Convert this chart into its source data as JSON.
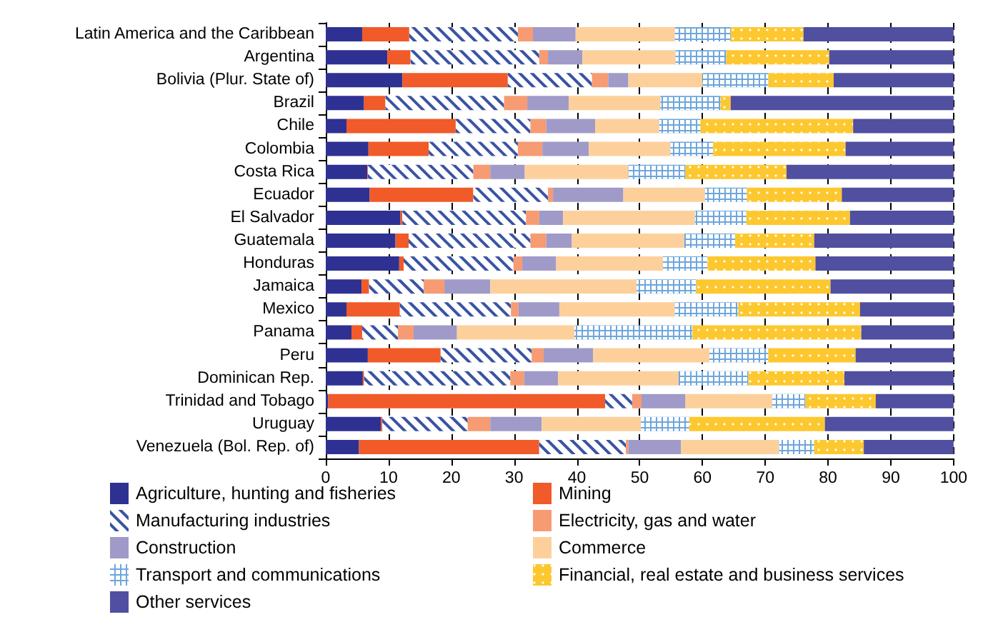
{
  "chart_data": {
    "type": "bar",
    "orientation": "horizontal",
    "stacked": true,
    "categories": [
      "Latin America and the Caribbean",
      "Argentina",
      "Bolivia (Plur. State of)",
      "Brazil",
      "Chile",
      "Colombia",
      "Costa Rica",
      "Ecuador",
      "El Salvador",
      "Guatemala",
      "Honduras",
      "Jamaica",
      "Mexico",
      "Panama",
      "Peru",
      "Dominican Rep.",
      "Trinidad and Tobago",
      "Uruguay",
      "Venezuela (Bol. Rep. of)"
    ],
    "series": [
      {
        "name": "Agriculture, hunting and fisheries",
        "color": "#2e3192",
        "values": [
          5.8,
          9.8,
          12.2,
          6.1,
          3.3,
          6.8,
          6.6,
          7.0,
          11.9,
          11.1,
          11.7,
          5.7,
          3.3,
          4.1,
          6.7,
          5.9,
          0.4,
          8.8,
          5.3
        ]
      },
      {
        "name": "Mining",
        "color": "#f15a29",
        "values": [
          7.5,
          3.7,
          16.8,
          3.4,
          17.4,
          9.6,
          0.1,
          16.5,
          0.3,
          2.1,
          0.7,
          1.2,
          8.5,
          1.7,
          11.6,
          0.2,
          44.1,
          0.2,
          28.7
        ]
      },
      {
        "name": "Manufacturing industries",
        "color": "#3953a4",
        "values": [
          17.3,
          20.5,
          13.4,
          18.9,
          11.9,
          14.2,
          16.8,
          11.9,
          19.7,
          19.4,
          17.5,
          8.7,
          17.7,
          5.7,
          14.5,
          23.3,
          4.3,
          13.6,
          13.8
        ]
      },
      {
        "name": "Electricity, gas and water",
        "color": "#f79b72",
        "values": [
          2.4,
          1.4,
          2.6,
          3.7,
          2.5,
          3.9,
          2.7,
          0.8,
          2.1,
          2.5,
          1.4,
          3.3,
          1.2,
          2.5,
          1.9,
          2.2,
          1.5,
          3.6,
          0.4
        ]
      },
      {
        "name": "Construction",
        "color": "#a09ac9",
        "values": [
          6.8,
          5.5,
          3.2,
          6.6,
          7.8,
          7.4,
          5.5,
          11.2,
          3.8,
          4.1,
          5.4,
          7.3,
          6.5,
          6.9,
          7.9,
          5.4,
          7.0,
          8.2,
          8.4
        ]
      },
      {
        "name": "Commerce",
        "color": "#fdd09b",
        "values": [
          15.8,
          14.8,
          11.8,
          14.6,
          10.2,
          13.0,
          16.5,
          13.0,
          21.0,
          17.9,
          17.0,
          23.3,
          18.4,
          18.7,
          18.5,
          19.2,
          13.8,
          15.8,
          15.6
        ]
      },
      {
        "name": "Transport and communications",
        "color": "#6ea6dc",
        "values": [
          8.9,
          8.1,
          10.5,
          9.6,
          6.6,
          6.8,
          9.1,
          6.7,
          8.2,
          8.1,
          7.1,
          9.5,
          10.1,
          18.8,
          9.4,
          11.1,
          5.3,
          7.7,
          5.6
        ]
      },
      {
        "name": "Financial, real estate and business services",
        "color": "#fdc82f",
        "values": [
          11.6,
          16.4,
          10.4,
          1.6,
          24.3,
          21.1,
          16.1,
          15.1,
          16.5,
          12.6,
          17.2,
          21.4,
          19.4,
          26.9,
          13.9,
          15.3,
          11.2,
          21.6,
          7.9
        ]
      },
      {
        "name": "Other services",
        "color": "#504fa0",
        "values": [
          23.9,
          19.8,
          19.1,
          35.5,
          16.0,
          17.2,
          26.6,
          17.8,
          16.5,
          22.2,
          22.0,
          19.6,
          14.9,
          14.7,
          15.6,
          17.4,
          12.4,
          20.5,
          14.3
        ]
      }
    ],
    "xlim": [
      0,
      100
    ],
    "xticks": [
      0,
      10,
      20,
      30,
      40,
      50,
      60,
      70,
      80,
      90,
      100
    ],
    "grid": "x",
    "legend": "bottom"
  }
}
